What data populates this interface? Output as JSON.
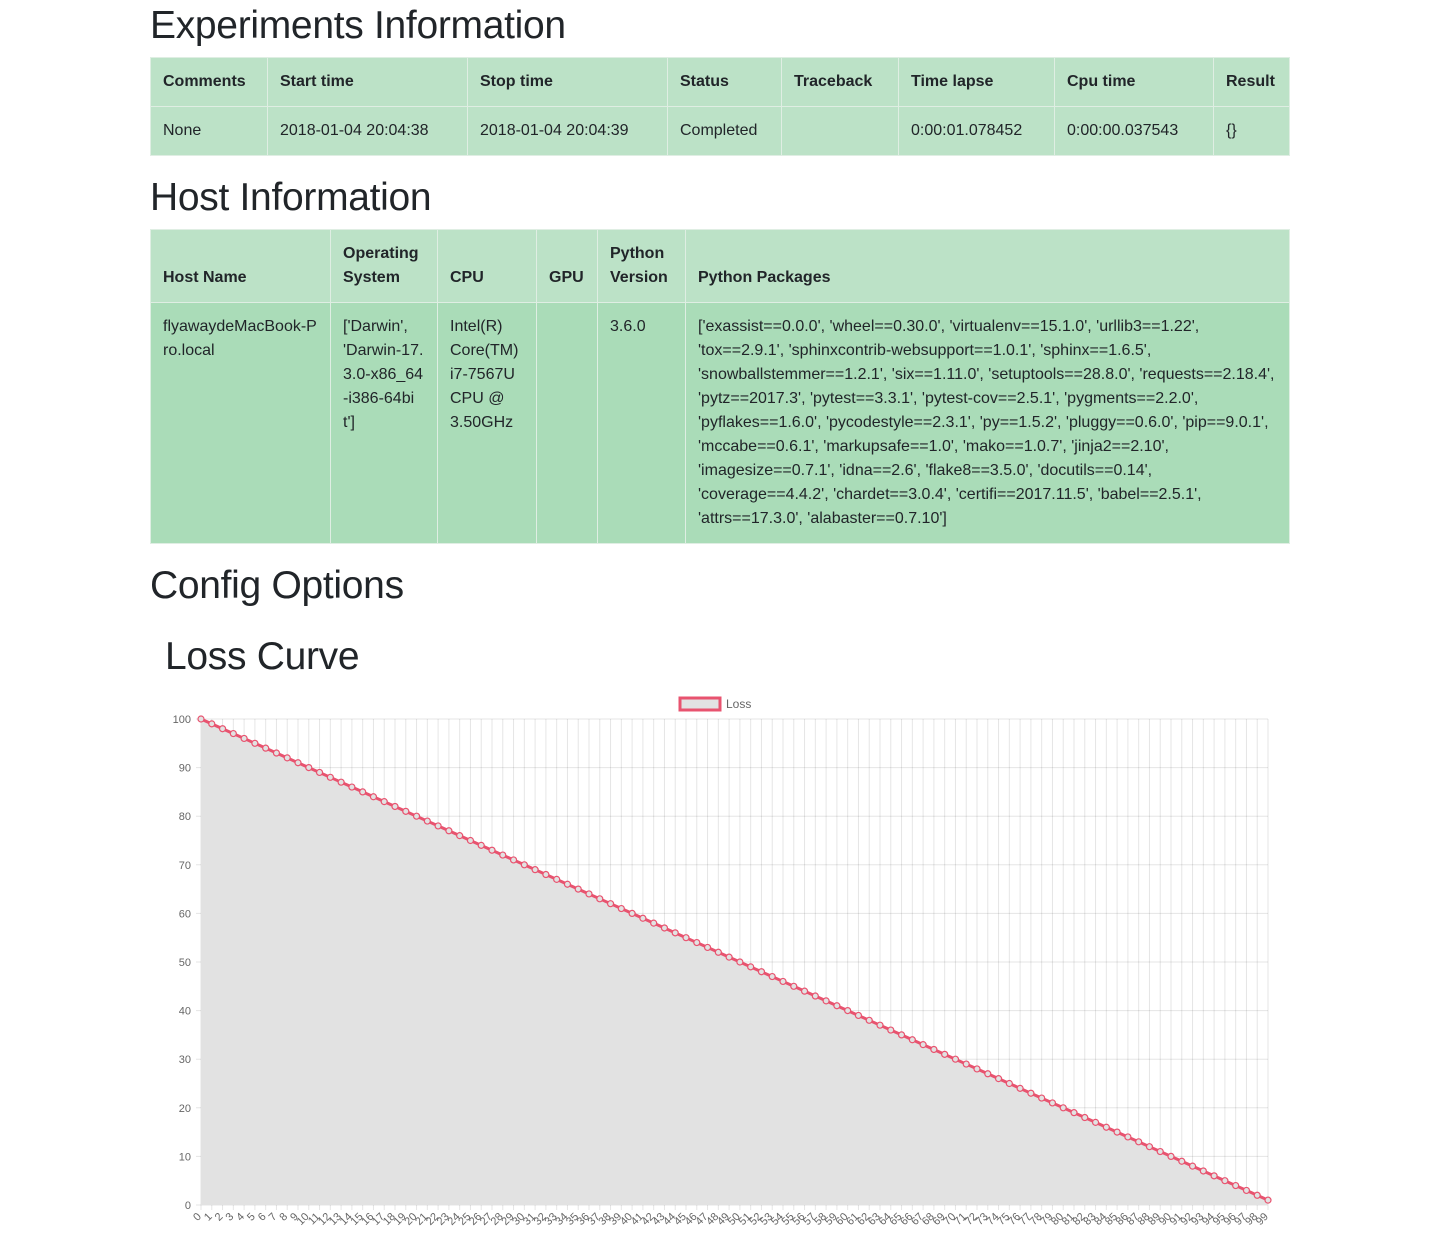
{
  "sections": {
    "experiments_title": "Experiments Information",
    "host_title": "Host Information",
    "config_title": "Config Options",
    "loss_title": "Loss Curve"
  },
  "experiments": {
    "headers": [
      "Comments",
      "Start time",
      "Stop time",
      "Status",
      "Traceback",
      "Time lapse",
      "Cpu time",
      "Result"
    ],
    "row": {
      "comments": "None",
      "start_time": "2018-01-04 20:04:38",
      "stop_time": "2018-01-04 20:04:39",
      "status": "Completed",
      "traceback": "",
      "time_lapse": "0:00:01.078452",
      "cpu_time": "0:00:00.037543",
      "result": "{}"
    }
  },
  "host": {
    "headers": [
      "Host Name",
      "Operating System",
      "CPU",
      "GPU",
      "Python Version",
      "Python Packages"
    ],
    "row": {
      "host_name": "flyawaydeMacBook-Pro.local",
      "os": "['Darwin', 'Darwin-17.3.0-x86_64-i386-64bit']",
      "cpu": "Intel(R) Core(TM) i7-7567U CPU @ 3.50GHz",
      "gpu": "",
      "python_version": "3.6.0",
      "python_packages": "['exassist==0.0.0', 'wheel==0.30.0', 'virtualenv==15.1.0', 'urllib3==1.22', 'tox==2.9.1', 'sphinxcontrib-websupport==1.0.1', 'sphinx==1.6.5', 'snowballstemmer==1.2.1', 'six==1.11.0', 'setuptools==28.8.0', 'requests==2.18.4', 'pytz==2017.3', 'pytest==3.3.1', 'pytest-cov==2.5.1', 'pygments==2.2.0', 'pyflakes==1.6.0', 'pycodestyle==2.3.1', 'py==1.5.2', 'pluggy==0.6.0', 'pip==9.0.1', 'mccabe==0.6.1', 'markupsafe==1.0', 'mako==1.0.7', 'jinja2==2.10', 'imagesize==0.7.1', 'idna==2.6', 'flake8==3.5.0', 'docutils==0.14', 'coverage==4.4.2', 'chardet==3.0.4', 'certifi==2017.11.5', 'babel==2.5.1', 'attrs==17.3.0', 'alabaster==0.7.10']"
    }
  },
  "chart_data": {
    "type": "line",
    "title": "",
    "xlabel": "",
    "ylabel": "",
    "x_start": 0,
    "x_end": 99,
    "ylim": [
      0,
      100
    ],
    "y_ticks": [
      0,
      10,
      20,
      30,
      40,
      50,
      60,
      70,
      80,
      90,
      100
    ],
    "grid": true,
    "legend_position": "top",
    "series": [
      {
        "name": "Loss",
        "color": "#e8536f",
        "fill": "#e2e2e2",
        "values": [
          100,
          99,
          98,
          97,
          96,
          95,
          94,
          93,
          92,
          91,
          90,
          89,
          88,
          87,
          86,
          85,
          84,
          83,
          82,
          81,
          80,
          79,
          78,
          77,
          76,
          75,
          74,
          73,
          72,
          71,
          70,
          69,
          68,
          67,
          66,
          65,
          64,
          63,
          62,
          61,
          60,
          59,
          58,
          57,
          56,
          55,
          54,
          53,
          52,
          51,
          50,
          49,
          48,
          47,
          46,
          45,
          44,
          43,
          42,
          41,
          40,
          39,
          38,
          37,
          36,
          35,
          34,
          33,
          32,
          31,
          30,
          29,
          28,
          27,
          26,
          25,
          24,
          23,
          22,
          21,
          20,
          19,
          18,
          17,
          16,
          15,
          14,
          13,
          12,
          11,
          10,
          9,
          8,
          7,
          6,
          5,
          4,
          3,
          2,
          1
        ]
      }
    ]
  }
}
